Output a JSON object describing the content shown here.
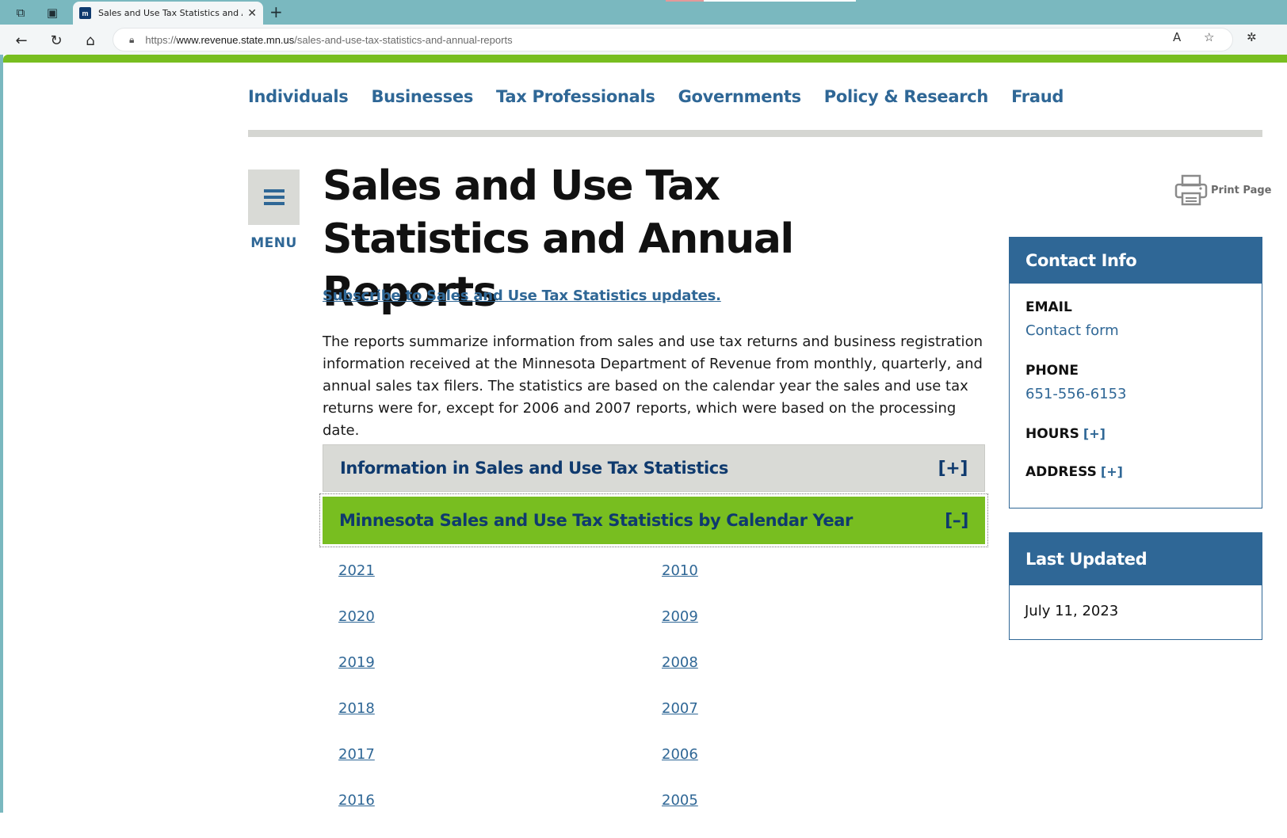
{
  "browser": {
    "tab_title": "Sales and Use Tax Statistics and A",
    "favicon_text": "m",
    "url_scheme": "https://",
    "url_host": "www.revenue.state.mn.us",
    "url_path": "/sales-and-use-tax-statistics-and-annual-reports"
  },
  "nav": {
    "items": [
      "Individuals",
      "Businesses",
      "Tax Professionals",
      "Governments",
      "Policy & Research",
      "Fraud"
    ]
  },
  "menu": {
    "label": "MENU"
  },
  "page": {
    "title": "Sales and Use Tax Statistics and Annual Reports",
    "print_label": "Print Page",
    "subscribe_link": "Subscribe to Sales and Use Tax Statistics updates.",
    "intro": "The reports summarize information from sales and use tax returns and business registration information received at the Minnesota Department of Revenue from monthly, quarterly, and annual sales tax filers. The statistics are based on the calendar year the sales and use tax returns were for, except for 2006 and 2007 reports, which were based on the processing date."
  },
  "accordions": [
    {
      "title": "Information in Sales and Use Tax Statistics",
      "toggle": "[+]",
      "expanded": false
    },
    {
      "title": "Minnesota Sales and Use Tax Statistics by Calendar Year",
      "toggle": "[–]",
      "expanded": true
    }
  ],
  "years": {
    "col1": [
      "2021",
      "2020",
      "2019",
      "2018",
      "2017",
      "2016"
    ],
    "col2": [
      "2010",
      "2009",
      "2008",
      "2007",
      "2006",
      "2005"
    ]
  },
  "sidebar": {
    "contact": {
      "title": "Contact Info",
      "email_label": "EMAIL",
      "email_value": "Contact form",
      "phone_label": "PHONE",
      "phone_value": "651-556-6153",
      "hours_label": "HOURS",
      "hours_toggle": "[+]",
      "address_label": "ADDRESS",
      "address_toggle": "[+]"
    },
    "updated": {
      "title": "Last Updated",
      "date": "July 11, 2023"
    }
  },
  "colors": {
    "brand_blue": "#2f6796",
    "accent_green": "#78be20",
    "dark_navy": "#0f3a6e"
  }
}
